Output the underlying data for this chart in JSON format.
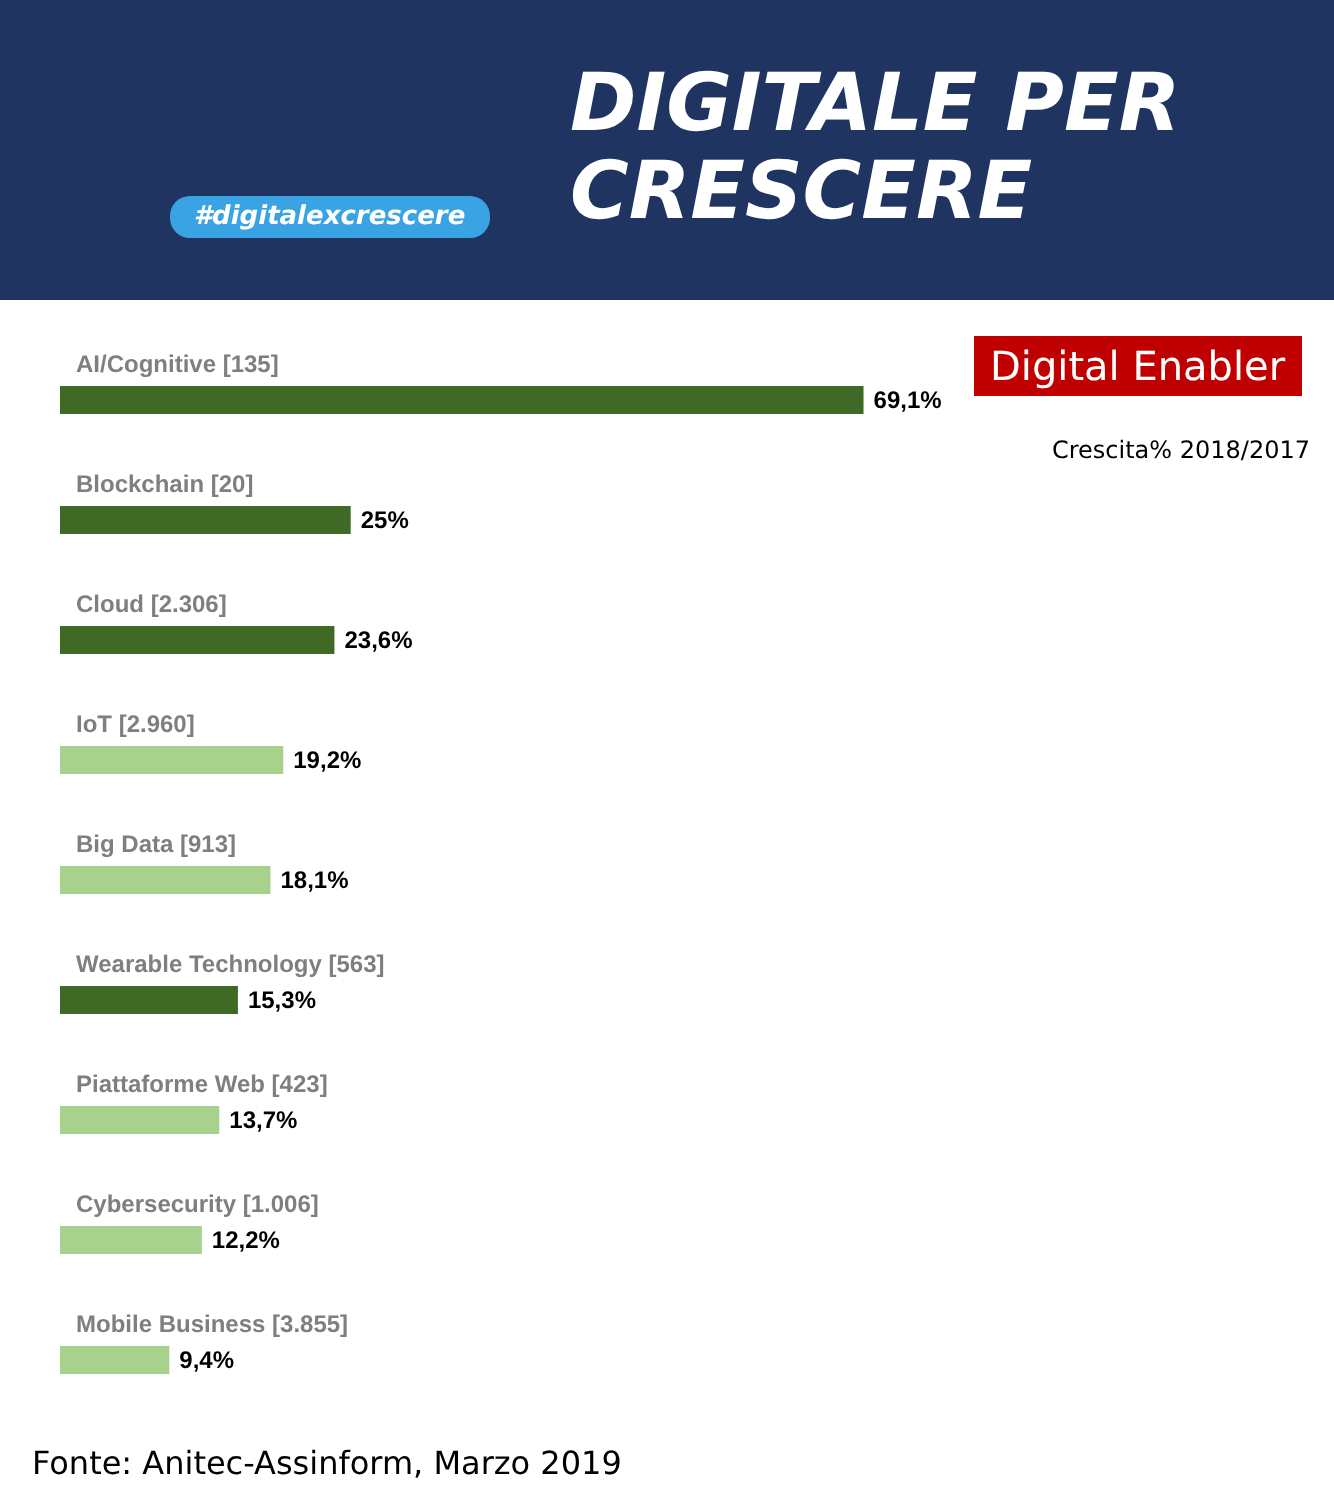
{
  "chart_data": {
    "type": "bar",
    "orientation": "horizontal",
    "title": "DIGITALE PER CRESCERE",
    "subtitle": "Digital Enabler",
    "categories": [
      "AI/Cognitive [135]",
      "Blockchain [20]",
      "Cloud [2.306]",
      "IoT [2.960]",
      "Big Data [913]",
      "Wearable Technology [563]",
      "Piattaforme Web [423]",
      "Cybersecurity [1.006]",
      "Mobile Business [3.855]"
    ],
    "values": [
      69.1,
      25,
      23.6,
      19.2,
      18.1,
      15.3,
      13.7,
      12.2,
      9.4
    ],
    "value_labels": [
      "69,1%",
      "25%",
      "23,6%",
      "19,2%",
      "18,1%",
      "15,3%",
      "13,7%",
      "12,2%",
      "9,4%"
    ],
    "colors": [
      "#3f6a25",
      "#3f6a25",
      "#3f6a25",
      "#a9d18e",
      "#a9d18e",
      "#3f6a25",
      "#a9d18e",
      "#a9d18e",
      "#a9d18e"
    ],
    "annotations": [
      "#digitalexcrescere",
      "Crescita% 2018/2017",
      "Fonte: Anitec-Assinform, Marzo 2019"
    ],
    "grid": false
  }
}
